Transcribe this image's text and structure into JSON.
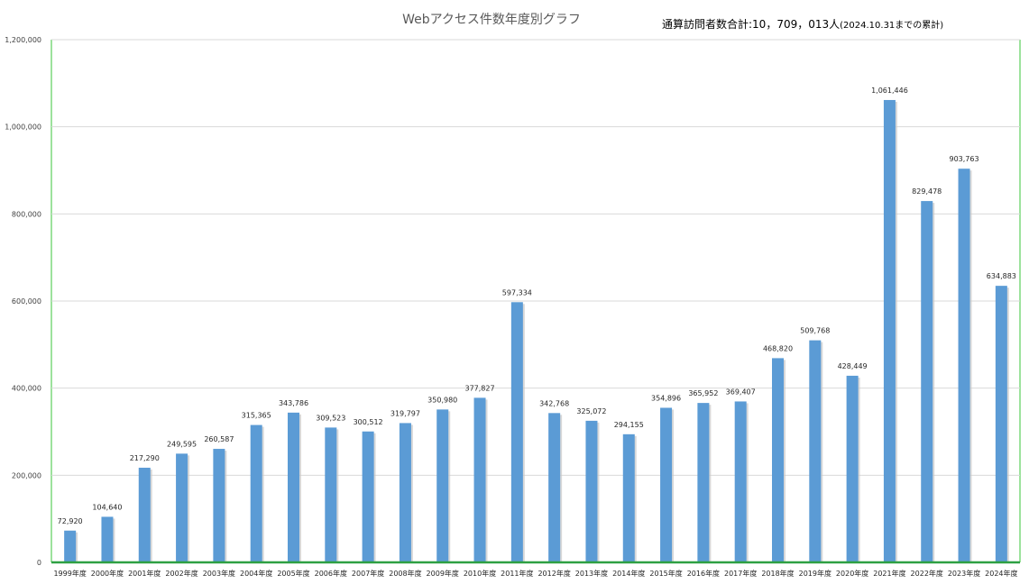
{
  "chart_data": {
    "type": "bar",
    "title": "Webアクセス件数年度別グラフ",
    "categories": [
      "1999年度",
      "2000年度",
      "2001年度",
      "2002年度",
      "2003年度",
      "2004年度",
      "2005年度",
      "2006年度",
      "2007年度",
      "2008年度",
      "2009年度",
      "2010年度",
      "2011年度",
      "2012年度",
      "2013年度",
      "2014年度",
      "2015年度",
      "2016年度",
      "2017年度",
      "2018年度",
      "2019年度",
      "2020年度",
      "2021年度",
      "2022年度",
      "2023年度",
      "2024年度"
    ],
    "values": [
      72920,
      104640,
      217290,
      249595,
      260587,
      315365,
      343786,
      309523,
      300512,
      319797,
      350980,
      377827,
      597334,
      342768,
      325072,
      294155,
      354896,
      365952,
      369407,
      468820,
      509768,
      428449,
      1061446,
      829478,
      903763,
      634883
    ],
    "ylim": [
      0,
      1200000
    ],
    "yticks": [
      0,
      200000,
      400000,
      600000,
      800000,
      1000000,
      1200000
    ],
    "grid": true,
    "legend": "none",
    "bar_color": "#5b9bd5",
    "border_color": "#7bd87b"
  },
  "total_note": {
    "label": "通算訪問者数合計:",
    "value": "10，709，013人",
    "suffix": "(2024.10.31までの累計)"
  }
}
